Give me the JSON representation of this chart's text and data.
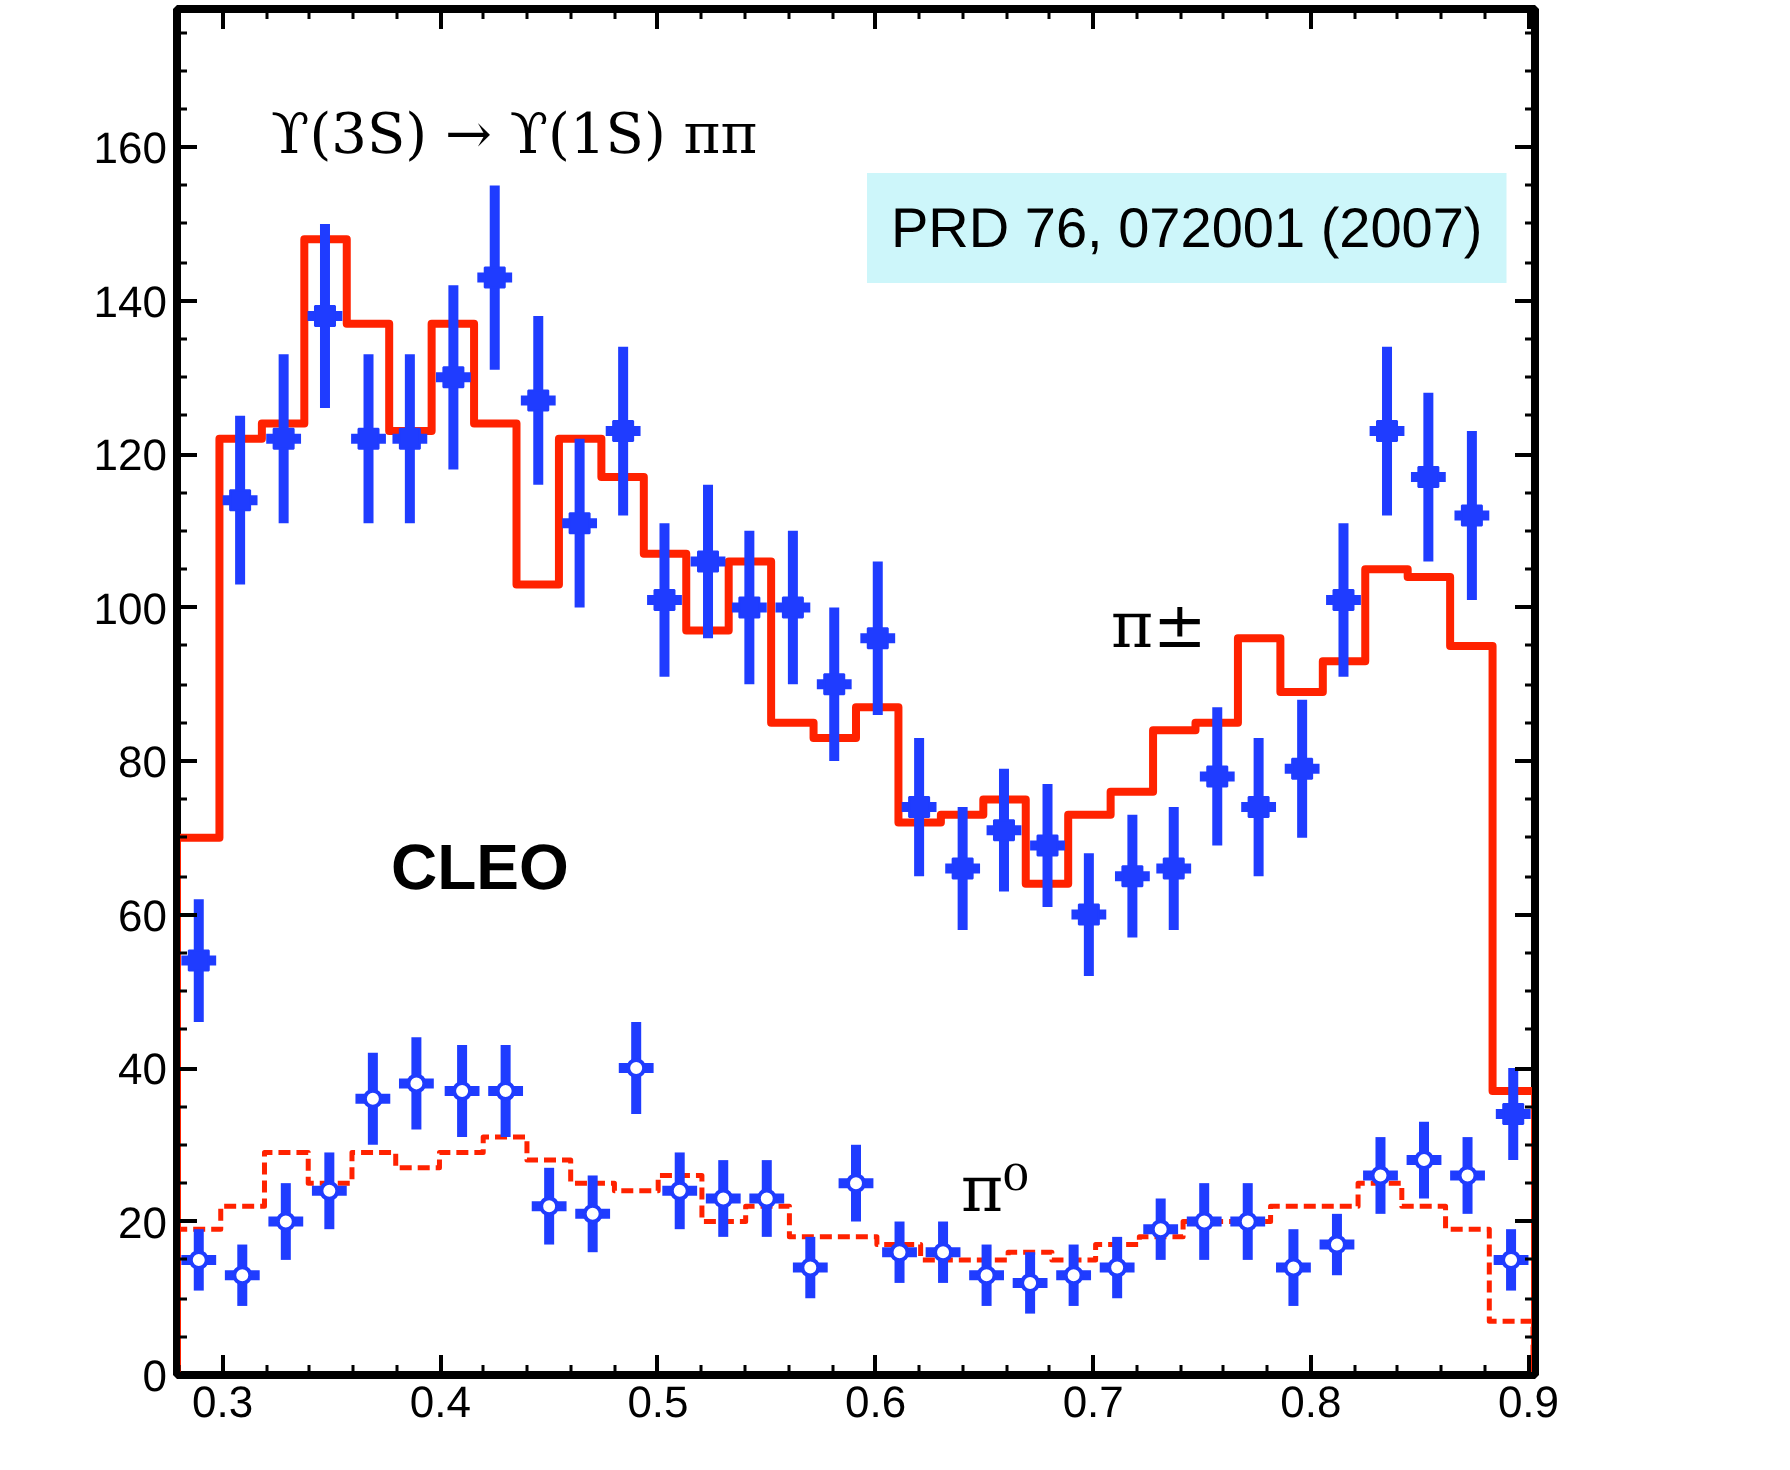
{
  "chart_data": {
    "type": "scatter",
    "title": "ϒ(3S) → ϒ(1S) ππ",
    "annotations": [
      "CLEO",
      "PRD 76, 072001 (2007)"
    ],
    "xlim": [
      0.279,
      0.903
    ],
    "ylim": [
      0,
      178
    ],
    "xticks": [
      0.3,
      0.4,
      0.5,
      0.6,
      0.7,
      0.8,
      0.9
    ],
    "yticks": [
      0,
      20,
      40,
      60,
      80,
      100,
      120,
      140,
      160
    ],
    "grid": false,
    "series": [
      {
        "type": "histogram",
        "name": "π±",
        "color": "#ff2200",
        "line_style": "solid",
        "bins": [
          0.279,
          0.2985,
          0.318,
          0.3375,
          0.357,
          0.3765,
          0.396,
          0.4155,
          0.435,
          0.4545,
          0.474,
          0.4935,
          0.513,
          0.5325,
          0.552,
          0.5715,
          0.591,
          0.6105,
          0.63,
          0.6495,
          0.669,
          0.6885,
          0.708,
          0.7275,
          0.747,
          0.7665,
          0.786,
          0.8055,
          0.825,
          0.8445,
          0.864,
          0.8835,
          0.903
        ],
        "values": [
          70,
          122,
          124,
          148,
          137,
          123,
          137,
          124,
          103,
          122,
          117,
          107,
          97,
          106,
          85,
          83,
          87,
          72,
          73,
          75,
          64,
          73,
          76,
          84,
          85,
          96,
          89,
          93,
          105,
          104,
          95,
          37
        ]
      },
      {
        "type": "histogram",
        "name": "π⁰",
        "color": "#ff2200",
        "line_style": "dashed",
        "bins": [
          0.279,
          0.2991,
          0.3192,
          0.3393,
          0.3594,
          0.3795,
          0.3996,
          0.4197,
          0.4398,
          0.4599,
          0.48,
          0.5001,
          0.5202,
          0.5403,
          0.5604,
          0.5805,
          0.6006,
          0.6207,
          0.6408,
          0.6609,
          0.681,
          0.7011,
          0.7212,
          0.7413,
          0.7614,
          0.7815,
          0.8016,
          0.8217,
          0.8418,
          0.8619,
          0.882,
          0.9021
        ],
        "values": [
          19,
          22,
          29,
          25,
          29,
          27,
          29,
          31,
          28,
          25,
          24,
          26,
          20,
          22,
          18,
          18,
          17,
          15,
          15,
          16,
          15,
          17,
          18,
          20,
          20,
          22,
          22,
          25,
          22,
          19,
          7
        ]
      },
      {
        "marker": "square",
        "color": "#1f3cff",
        "x": [
          0.289,
          0.308,
          0.328,
          0.347,
          0.367,
          0.386,
          0.406,
          0.425,
          0.445,
          0.464,
          0.484,
          0.503,
          0.523,
          0.542,
          0.562,
          0.581,
          0.601,
          0.62,
          0.64,
          0.659,
          0.679,
          0.698,
          0.718,
          0.737,
          0.757,
          0.776,
          0.796,
          0.815,
          0.835,
          0.854,
          0.874,
          0.893
        ],
        "values": [
          54,
          114,
          122,
          138,
          122,
          122,
          130,
          143,
          127,
          111,
          123,
          101,
          106,
          100,
          100,
          90,
          96,
          74,
          66,
          71,
          69,
          60,
          65,
          66,
          78,
          74,
          79,
          101,
          123,
          117,
          112,
          34
        ],
        "errors": [
          8,
          11,
          11,
          12,
          11,
          11,
          12,
          12,
          11,
          11,
          11,
          10,
          10,
          10,
          10,
          10,
          10,
          9,
          8,
          8,
          8,
          8,
          8,
          8,
          9,
          9,
          9,
          10,
          11,
          11,
          11,
          6
        ],
        "xerrors": [
          0.008,
          0.008,
          0.008,
          0.008,
          0.008,
          0.008,
          0.008,
          0.008,
          0.008,
          0.008,
          0.008,
          0.008,
          0.008,
          0.008,
          0.008,
          0.008,
          0.008,
          0.008,
          0.008,
          0.008,
          0.008,
          0.008,
          0.008,
          0.008,
          0.008,
          0.008,
          0.008,
          0.008,
          0.008,
          0.008,
          0.008,
          0.008
        ]
      },
      {
        "marker": "circle",
        "color": "#1f3cff",
        "x": [
          0.289,
          0.309,
          0.329,
          0.349,
          0.369,
          0.389,
          0.41,
          0.43,
          0.45,
          0.47,
          0.49,
          0.51,
          0.53,
          0.55,
          0.57,
          0.591,
          0.611,
          0.631,
          0.651,
          0.671,
          0.691,
          0.711,
          0.731,
          0.751,
          0.771,
          0.792,
          0.812,
          0.832,
          0.852,
          0.872,
          0.892
        ],
        "values": [
          15,
          13,
          20,
          24,
          36,
          38,
          37,
          37,
          22,
          21,
          40,
          24,
          23,
          23,
          14,
          25,
          16,
          16,
          13,
          12,
          13,
          14,
          19,
          20,
          20,
          14,
          17,
          26,
          28,
          26,
          15
        ],
        "errors": [
          4,
          4,
          5,
          5,
          6,
          6,
          6,
          6,
          5,
          5,
          6,
          5,
          5,
          5,
          4,
          5,
          4,
          4,
          4,
          4,
          4,
          4,
          4,
          5,
          5,
          5,
          4,
          5,
          5,
          5,
          4
        ],
        "xerrors": [
          0.008,
          0.008,
          0.008,
          0.008,
          0.008,
          0.008,
          0.008,
          0.008,
          0.008,
          0.008,
          0.008,
          0.008,
          0.008,
          0.008,
          0.008,
          0.008,
          0.008,
          0.008,
          0.008,
          0.008,
          0.008,
          0.008,
          0.008,
          0.008,
          0.008,
          0.008,
          0.008,
          0.008,
          0.008,
          0.008,
          0.008
        ]
      }
    ]
  }
}
